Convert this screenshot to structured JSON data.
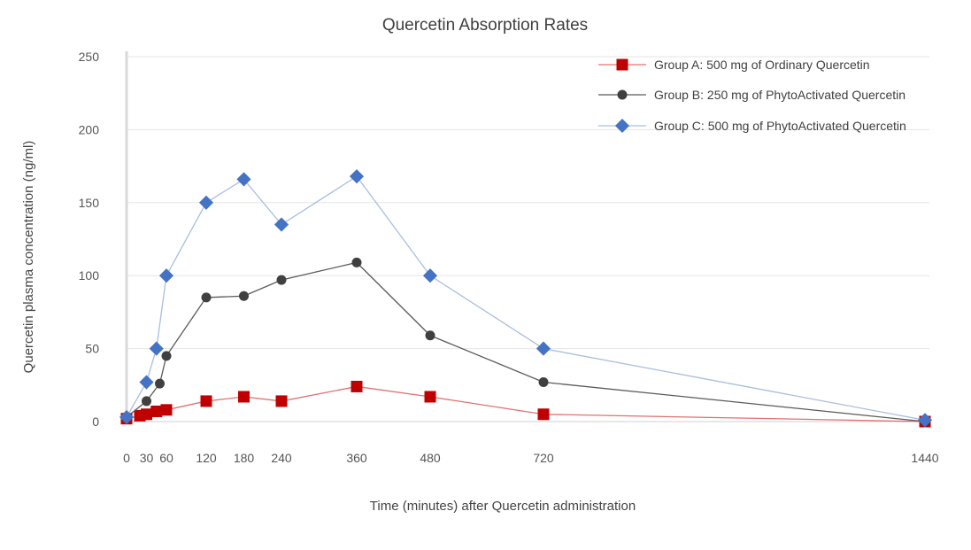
{
  "chart_data": {
    "type": "line",
    "title": "Quercetin Absorption Rates",
    "xlabel": "Time (minutes) after Quercetin administration",
    "ylabel": "Quercetin plasma concentration (ng/ml)",
    "xlim": [
      0,
      1440
    ],
    "ylim": [
      0,
      250
    ],
    "x_ticks": [
      0,
      30,
      60,
      120,
      180,
      240,
      360,
      480,
      720,
      1440
    ],
    "y_ticks": [
      0,
      50,
      100,
      150,
      200,
      250
    ],
    "grid": true,
    "legend_position": "top-right",
    "series": [
      {
        "name": "Group A: 500 mg of Ordinary Quercetin",
        "color": "#c00000",
        "line_color": "#e07070",
        "marker": "square",
        "x": [
          0,
          20,
          30,
          45,
          60,
          120,
          180,
          240,
          360,
          480,
          720,
          1440
        ],
        "y": [
          2,
          4,
          5,
          7,
          8,
          14,
          17,
          14,
          24,
          17,
          5,
          0
        ]
      },
      {
        "name": "Group B: 250 mg of PhytoActivated Quercetin",
        "color": "#404040",
        "line_color": "#5a5a5a",
        "marker": "circle",
        "x": [
          0,
          30,
          50,
          60,
          120,
          180,
          240,
          360,
          480,
          720,
          1440
        ],
        "y": [
          3,
          14,
          26,
          45,
          85,
          86,
          97,
          109,
          59,
          27,
          0
        ]
      },
      {
        "name": "Group C: 500 mg of PhytoActivated Quercetin",
        "color": "#4472c4",
        "line_color": "#a9bde0",
        "marker": "diamond",
        "x": [
          0,
          30,
          45,
          60,
          120,
          180,
          240,
          360,
          480,
          720,
          1440
        ],
        "y": [
          3,
          27,
          50,
          100,
          150,
          166,
          135,
          168,
          100,
          50,
          1
        ]
      }
    ]
  }
}
